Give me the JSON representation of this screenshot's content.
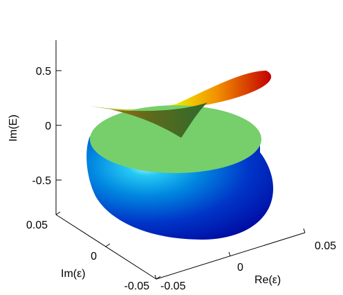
{
  "chart_data": {
    "type": "surface3d",
    "title": "",
    "xlabel": "Re(ε)",
    "ylabel": "Im(ε)",
    "zlabel": "Im(E)",
    "xlim": [
      -0.05,
      0.05
    ],
    "ylim": [
      -0.05,
      0.05
    ],
    "zlim": [
      -0.8,
      0.75
    ],
    "x_ticks": [
      "-0.05",
      "0",
      "0.05"
    ],
    "y_ticks": [
      "0.05",
      "0",
      "-0.05"
    ],
    "z_ticks": [
      "0.5",
      "0",
      "-0.5"
    ],
    "grid": false,
    "colormap": "jet",
    "surfaces": [
      {
        "role": "upper-twisted-sheet",
        "z_range": [
          -0.1,
          0.6
        ],
        "colors": [
          "#3f6a1d",
          "#9ad93a",
          "#f2e400",
          "#f08c00",
          "#c80000"
        ]
      },
      {
        "role": "flat-disk",
        "z_value": 0.0,
        "color": "#76cf6a"
      },
      {
        "role": "lower-bowl",
        "z_range": [
          -0.75,
          0.0
        ],
        "colors": [
          "#9af6ff",
          "#15b6f0",
          "#006ed8",
          "#0018b8"
        ]
      }
    ]
  }
}
